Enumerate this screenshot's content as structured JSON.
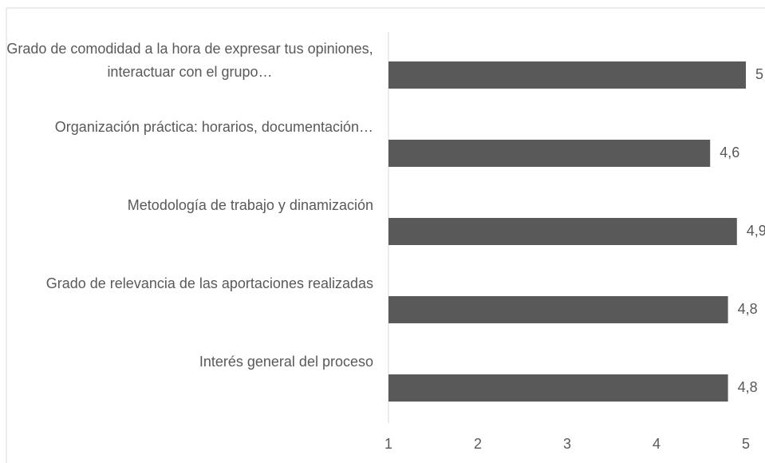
{
  "chart_data": {
    "type": "bar",
    "orientation": "horizontal",
    "categories": [
      "Grado de comodidad a la hora de expresar tus opiniones, interactuar con el grupo…",
      "Organización práctica: horarios, documentación…",
      "Metodología de trabajo y dinamización",
      "Grado de relevancia de las aportaciones realizadas",
      "Interés general del proceso"
    ],
    "values": [
      5,
      4.6,
      4.9,
      4.8,
      4.8
    ],
    "value_labels": [
      "5",
      "4,6",
      "4,9",
      "4,8",
      "4,8"
    ],
    "color": "#595959",
    "xlim": [
      1,
      5
    ],
    "xticks": [
      1,
      2,
      3,
      4,
      5
    ],
    "grid": false
  }
}
